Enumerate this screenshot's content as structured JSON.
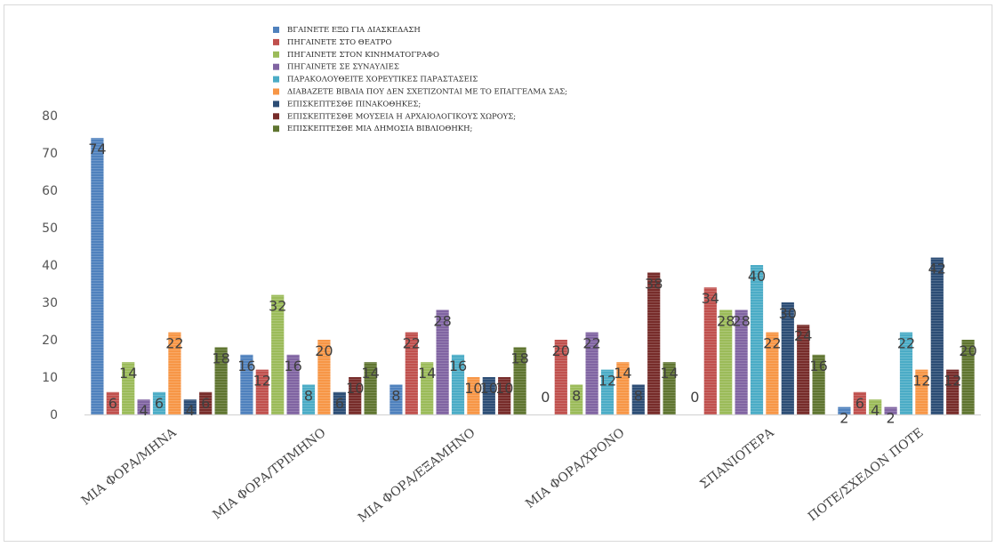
{
  "chart_data": {
    "type": "bar",
    "categories": [
      "ΜΙΑ ΦΟΡΑ/ΜΗΝΑ",
      "ΜΙΑ ΦΟΡΑ/ΤΡΙΜΗΝΟ",
      "ΜΙΑ ΦΟΡΑ/ΕΞΑΜΗΝΟ",
      "ΜΙΑ ΦΟΡΑ/ΧΡΟΝΟ",
      "ΣΠΑΝΙΟΤΕΡΑ",
      "ΠΟΤΕ/ΣΧΕΔΟΝ ΠΟΤΕ"
    ],
    "series": [
      {
        "name": "ΒΓΑΙΝΕΤΕ ΕΞΩ ΓΙΑ ΔΙΑΣΚΕΔΑΣΗ",
        "color": "#4f81bd",
        "values": [
          74,
          16,
          8,
          0,
          0,
          2
        ]
      },
      {
        "name": "ΠΗΓΑΙΝΕΤΕ ΣΤΟ ΘΕΑΤΡΟ",
        "color": "#c0504d",
        "values": [
          6,
          12,
          22,
          20,
          34,
          6
        ]
      },
      {
        "name": "ΠΗΓΑΙΝΕΤΕ ΣΤΟΝ ΚΙΝΗΜΑΤΟΓΡΑΦΟ",
        "color": "#9bbb59",
        "values": [
          14,
          32,
          14,
          8,
          28,
          4
        ]
      },
      {
        "name": "ΠΗΓΑΙΝΕΤΕ ΣΕ ΣΥΝΑΥΛΙΕΣ",
        "color": "#8064a2",
        "values": [
          4,
          16,
          28,
          22,
          28,
          2
        ]
      },
      {
        "name": "ΠΑΡΑΚΟΛΟΥΘΕΙΤΕ ΧΟΡΕΥΤΙΚΕΣ ΠΑΡΑΣΤΑΣΕΙΣ",
        "color": "#4bacc6",
        "values": [
          6,
          8,
          16,
          12,
          40,
          22
        ]
      },
      {
        "name": "ΔΙΑΒΑΖΕΤΕ ΒΙΒΛΙΑ ΠΟΥ ΔΕΝ ΣΧΕΤΙΖΟΝΤΑΙ ΜΕ ΤΟ ΕΠΑΓΓΕΛΜΑ ΣΑΣ;",
        "color": "#f79646",
        "values": [
          22,
          20,
          10,
          14,
          22,
          12
        ]
      },
      {
        "name": "ΕΠΙΣΚΕΠΤΕΣΘΕ ΠΙΝΑΚΟΘΗΚΕΣ;",
        "color": "#2c4d75",
        "values": [
          4,
          6,
          10,
          8,
          30,
          42
        ]
      },
      {
        "name": "ΕΠΙΣΚΕΠΤΕΣΘΕ ΜΟΥΣΕΙΑ Η ΑΡΧΑΙΟΛΟΓΙΚΟΥΣ ΧΩΡΟΥΣ;",
        "color": "#772c2a",
        "values": [
          6,
          10,
          10,
          38,
          24,
          12
        ]
      },
      {
        "name": "ΕΠΙΣΚΕΠΤΕΣΘΕ ΜΙΑ ΔΗΜΟΣΙΑ ΒΙΒΛΙΟΘΗΚΗ;",
        "color": "#5f7530",
        "values": [
          18,
          14,
          18,
          14,
          16,
          20
        ]
      }
    ],
    "ylim": [
      0,
      80
    ],
    "yticks": [
      0,
      10,
      20,
      30,
      40,
      50,
      60,
      70,
      80
    ],
    "grid": false,
    "legend_position": "top-center",
    "xlabel": "",
    "ylabel": ""
  }
}
